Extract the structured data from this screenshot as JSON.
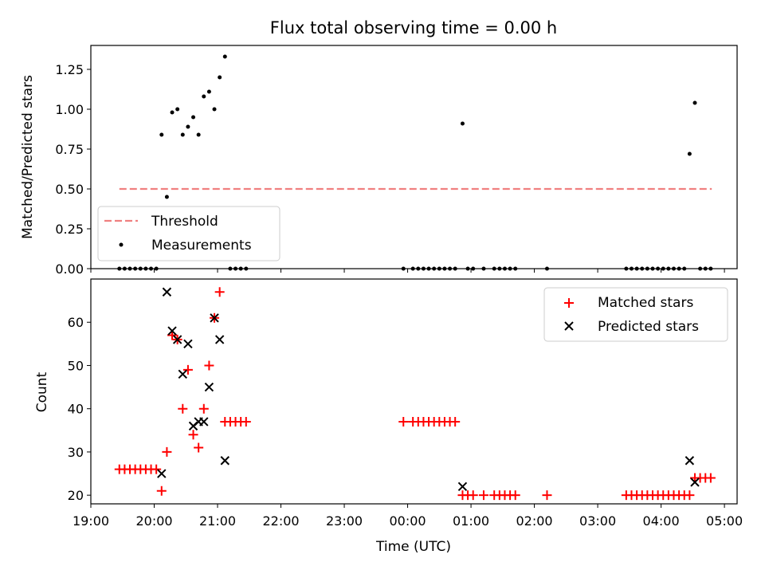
{
  "chart_data": [
    {
      "type": "scatter",
      "title": "Flux total observing time = 0.00 h",
      "ylabel": "Matched/Predicted stars",
      "xlabel": "",
      "ylim": [
        0,
        1.4
      ],
      "xlim": [
        "19:00",
        "05:00"
      ],
      "yticks": [
        0.0,
        0.25,
        0.5,
        0.75,
        1.0,
        1.25
      ],
      "ytick_labels": [
        "0.00",
        "0.25",
        "0.50",
        "0.75",
        "1.00",
        "1.25"
      ],
      "legend_position": "lower-left",
      "series": [
        {
          "name": "Threshold",
          "style": "dashed-line",
          "color": "#f08080",
          "points": [
            [
              "19:27",
              0.5
            ],
            [
              "04:48",
              0.5
            ]
          ]
        },
        {
          "name": "Measurements",
          "style": "dot",
          "color": "#000000",
          "points": [
            [
              "19:27",
              0.0
            ],
            [
              "19:32",
              0.0
            ],
            [
              "19:37",
              0.0
            ],
            [
              "19:42",
              0.0
            ],
            [
              "19:47",
              0.0
            ],
            [
              "19:52",
              0.0
            ],
            [
              "19:57",
              0.0
            ],
            [
              "20:02",
              0.0
            ],
            [
              "20:07",
              0.84
            ],
            [
              "20:12",
              0.45
            ],
            [
              "20:17",
              0.98
            ],
            [
              "20:22",
              1.0
            ],
            [
              "20:27",
              0.84
            ],
            [
              "20:32",
              0.89
            ],
            [
              "20:37",
              0.95
            ],
            [
              "20:42",
              0.84
            ],
            [
              "20:47",
              1.08
            ],
            [
              "20:52",
              1.11
            ],
            [
              "20:57",
              1.0
            ],
            [
              "21:02",
              1.2
            ],
            [
              "21:07",
              1.33
            ],
            [
              "21:12",
              0.0
            ],
            [
              "21:17",
              0.0
            ],
            [
              "21:22",
              0.0
            ],
            [
              "21:27",
              0.0
            ],
            [
              "23:56",
              0.0
            ],
            [
              "00:05",
              0.0
            ],
            [
              "00:10",
              0.0
            ],
            [
              "00:15",
              0.0
            ],
            [
              "00:20",
              0.0
            ],
            [
              "00:25",
              0.0
            ],
            [
              "00:30",
              0.0
            ],
            [
              "00:35",
              0.0
            ],
            [
              "00:40",
              0.0
            ],
            [
              "00:45",
              0.0
            ],
            [
              "00:52",
              0.91
            ],
            [
              "00:57",
              0.0
            ],
            [
              "01:02",
              0.0
            ],
            [
              "01:12",
              0.0
            ],
            [
              "01:22",
              0.0
            ],
            [
              "01:27",
              0.0
            ],
            [
              "01:32",
              0.0
            ],
            [
              "01:37",
              0.0
            ],
            [
              "01:42",
              0.0
            ],
            [
              "02:12",
              0.0
            ],
            [
              "03:27",
              0.0
            ],
            [
              "03:32",
              0.0
            ],
            [
              "03:37",
              0.0
            ],
            [
              "03:42",
              0.0
            ],
            [
              "03:47",
              0.0
            ],
            [
              "03:52",
              0.0
            ],
            [
              "03:57",
              0.0
            ],
            [
              "04:02",
              0.0
            ],
            [
              "04:07",
              0.0
            ],
            [
              "04:12",
              0.0
            ],
            [
              "04:17",
              0.0
            ],
            [
              "04:22",
              0.0
            ],
            [
              "04:27",
              0.72
            ],
            [
              "04:32",
              1.04
            ],
            [
              "04:37",
              0.0
            ],
            [
              "04:42",
              0.0
            ],
            [
              "04:47",
              0.0
            ]
          ]
        }
      ]
    },
    {
      "type": "scatter",
      "title": "",
      "ylabel": "Count",
      "xlabel": "Time (UTC)",
      "ylim": [
        18,
        70
      ],
      "xlim": [
        "19:00",
        "05:00"
      ],
      "yticks": [
        20,
        30,
        40,
        50,
        60
      ],
      "ytick_labels": [
        "20",
        "30",
        "40",
        "50",
        "60"
      ],
      "xticks": [
        "19:00",
        "20:00",
        "21:00",
        "22:00",
        "23:00",
        "00:00",
        "01:00",
        "02:00",
        "03:00",
        "04:00",
        "05:00"
      ],
      "legend_position": "top-right",
      "series": [
        {
          "name": "Matched stars",
          "style": "plus",
          "color": "#ff0000",
          "points": [
            [
              "19:27",
              26
            ],
            [
              "19:32",
              26
            ],
            [
              "19:37",
              26
            ],
            [
              "19:42",
              26
            ],
            [
              "19:47",
              26
            ],
            [
              "19:52",
              26
            ],
            [
              "19:57",
              26
            ],
            [
              "20:02",
              26
            ],
            [
              "20:07",
              21
            ],
            [
              "20:12",
              30
            ],
            [
              "20:17",
              57
            ],
            [
              "20:22",
              56
            ],
            [
              "20:27",
              40
            ],
            [
              "20:32",
              49
            ],
            [
              "20:37",
              34
            ],
            [
              "20:42",
              31
            ],
            [
              "20:47",
              40
            ],
            [
              "20:52",
              50
            ],
            [
              "20:57",
              61
            ],
            [
              "21:02",
              67
            ],
            [
              "21:07",
              37
            ],
            [
              "21:12",
              37
            ],
            [
              "21:17",
              37
            ],
            [
              "21:22",
              37
            ],
            [
              "21:27",
              37
            ],
            [
              "23:56",
              37
            ],
            [
              "00:05",
              37
            ],
            [
              "00:10",
              37
            ],
            [
              "00:15",
              37
            ],
            [
              "00:20",
              37
            ],
            [
              "00:25",
              37
            ],
            [
              "00:30",
              37
            ],
            [
              "00:35",
              37
            ],
            [
              "00:40",
              37
            ],
            [
              "00:45",
              37
            ],
            [
              "00:52",
              20
            ],
            [
              "00:57",
              20
            ],
            [
              "01:02",
              20
            ],
            [
              "01:12",
              20
            ],
            [
              "01:22",
              20
            ],
            [
              "01:27",
              20
            ],
            [
              "01:32",
              20
            ],
            [
              "01:37",
              20
            ],
            [
              "01:42",
              20
            ],
            [
              "02:12",
              20
            ],
            [
              "03:27",
              20
            ],
            [
              "03:32",
              20
            ],
            [
              "03:37",
              20
            ],
            [
              "03:42",
              20
            ],
            [
              "03:47",
              20
            ],
            [
              "03:52",
              20
            ],
            [
              "03:57",
              20
            ],
            [
              "04:02",
              20
            ],
            [
              "04:07",
              20
            ],
            [
              "04:12",
              20
            ],
            [
              "04:17",
              20
            ],
            [
              "04:22",
              20
            ],
            [
              "04:27",
              20
            ],
            [
              "04:32",
              24
            ],
            [
              "04:37",
              24
            ],
            [
              "04:42",
              24
            ],
            [
              "04:47",
              24
            ]
          ]
        },
        {
          "name": "Predicted stars",
          "style": "x",
          "color": "#000000",
          "points": [
            [
              "20:07",
              25
            ],
            [
              "20:12",
              67
            ],
            [
              "20:17",
              58
            ],
            [
              "20:22",
              56
            ],
            [
              "20:27",
              48
            ],
            [
              "20:32",
              55
            ],
            [
              "20:37",
              36
            ],
            [
              "20:42",
              37
            ],
            [
              "20:47",
              37
            ],
            [
              "20:52",
              45
            ],
            [
              "20:57",
              61
            ],
            [
              "21:02",
              56
            ],
            [
              "21:07",
              28
            ],
            [
              "00:52",
              22
            ],
            [
              "04:27",
              28
            ],
            [
              "04:32",
              23
            ]
          ]
        }
      ]
    }
  ]
}
